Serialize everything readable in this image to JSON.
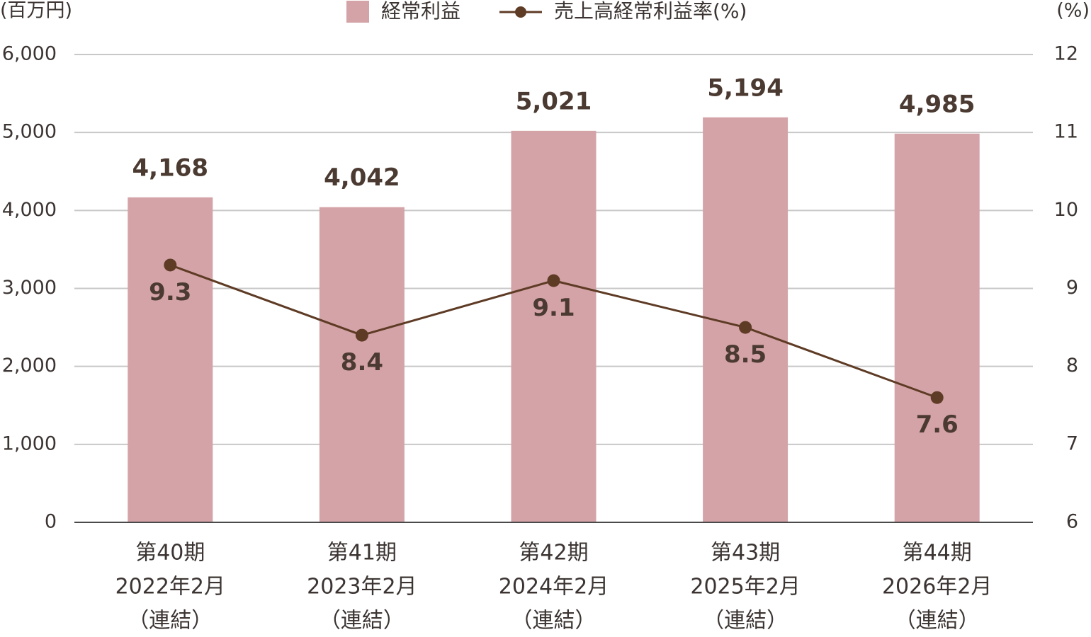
{
  "chart_data": {
    "type": "bar",
    "y_label": "(百万円)",
    "y2_label": "(%)",
    "categories": [
      [
        "第40期",
        "2022年2月",
        "（連結）"
      ],
      [
        "第41期",
        "2023年2月",
        "（連結）"
      ],
      [
        "第42期",
        "2024年2月",
        "（連結）"
      ],
      [
        "第43期",
        "2025年2月",
        "（連結）"
      ],
      [
        "第44期",
        "2026年2月",
        "（連結）"
      ]
    ],
    "series": [
      {
        "name": "経常利益",
        "type": "bar",
        "color": "#d4a3a7",
        "values": [
          4168,
          4042,
          5021,
          5194,
          4985
        ],
        "value_labels": [
          "4,168",
          "4,042",
          "5,021",
          "5,194",
          "4,985"
        ]
      },
      {
        "name": "売上高経常利益率(%)",
        "type": "line",
        "axis": "y2",
        "color": "#5e3b25",
        "values": [
          9.3,
          8.4,
          9.1,
          8.5,
          7.6
        ]
      }
    ],
    "ylim": [
      0,
      6000
    ],
    "yticks": [
      0,
      {
        "value": 1000,
        "label": "1,000"
      },
      {
        "value": 2000,
        "label": "2,000"
      },
      {
        "value": 3000,
        "label": "3,000"
      },
      {
        "value": 4000,
        "label": "4,000"
      },
      {
        "value": 5000,
        "label": "5,000"
      },
      {
        "value": 6000,
        "label": "6,000"
      }
    ],
    "y2lim": [
      6,
      12
    ],
    "y2ticks": [
      6,
      7,
      8,
      9,
      10,
      11,
      12
    ],
    "grid": true
  }
}
